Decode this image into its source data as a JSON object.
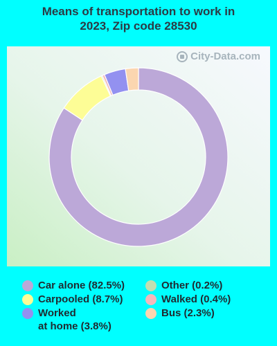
{
  "title": "Means of transportation to work in 2023, Zip code 28530",
  "watermark": "City-Data.com",
  "chart_data": {
    "type": "pie",
    "donut": true,
    "series": [
      {
        "name": "Car alone (82.5%)",
        "value": 82.5,
        "color": "#bca8d8"
      },
      {
        "name": "Carpooled (8.7%)",
        "value": 8.7,
        "color": "#fdfd96"
      },
      {
        "name": "Other (0.2%)",
        "value": 0.2,
        "color": "#c2dfb1"
      },
      {
        "name": "Walked (0.4%)",
        "value": 0.4,
        "color": "#f2b8bc"
      },
      {
        "name": "Worked at home (3.8%)",
        "value": 3.8,
        "color": "#9391f0"
      },
      {
        "name": "Bus (2.3%)",
        "value": 2.3,
        "color": "#fbd6b0"
      }
    ]
  },
  "legend": [
    {
      "label": "Car alone (82.5%)",
      "color": "#bca8d8"
    },
    {
      "label": "Carpooled (8.7%)",
      "color": "#fdfd96"
    },
    {
      "label": "Worked\nat home (3.8%)",
      "color": "#9391f0"
    },
    {
      "label": "Other (0.2%)",
      "color": "#c2dfb1"
    },
    {
      "label": "Walked (0.4%)",
      "color": "#f2b8bc"
    },
    {
      "label": "Bus (2.3%)",
      "color": "#fbd6b0"
    }
  ]
}
